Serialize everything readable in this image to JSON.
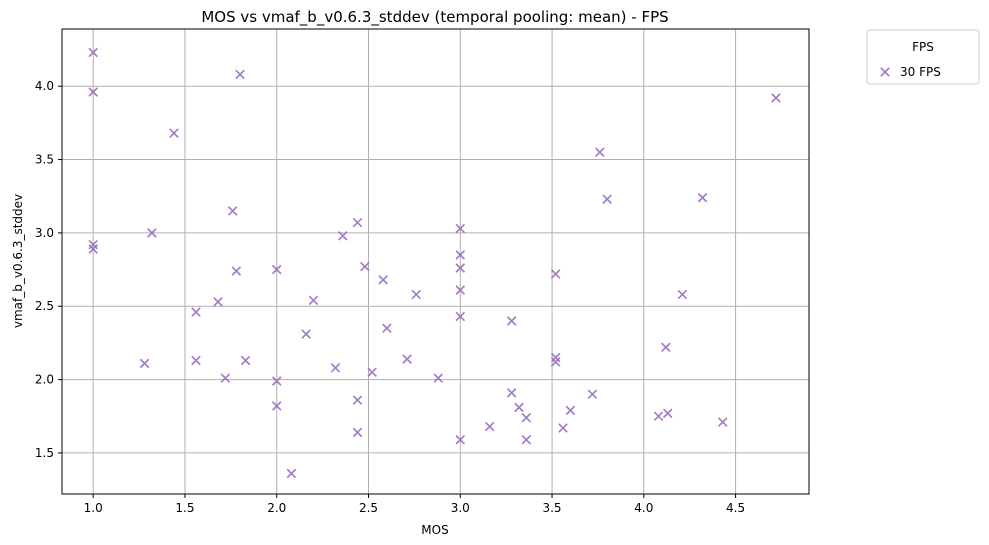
{
  "chart_data": {
    "type": "scatter",
    "title": "MOS vs vmaf_b_v0.6.3_stddev (temporal pooling: mean) - FPS",
    "xlabel": "MOS",
    "ylabel": "vmaf_b_v0.6.3_stddev",
    "xlim": [
      0.83,
      4.9
    ],
    "ylim": [
      1.22,
      4.39
    ],
    "xticks": [
      "1.0",
      "1.5",
      "2.0",
      "2.5",
      "3.0",
      "3.5",
      "4.0",
      "4.5"
    ],
    "yticks": [
      "1.5",
      "2.0",
      "2.5",
      "3.0",
      "3.5",
      "4.0"
    ],
    "grid": true,
    "legend": {
      "title": "FPS",
      "placement": "outside-top-right"
    },
    "series": [
      {
        "name": "30 FPS",
        "color": "#9467bd",
        "marker": "x",
        "points": [
          [
            1.0,
            4.23
          ],
          [
            1.0,
            3.96
          ],
          [
            1.0,
            2.92
          ],
          [
            1.0,
            2.89
          ],
          [
            1.28,
            2.11
          ],
          [
            1.32,
            3.0
          ],
          [
            1.44,
            3.68
          ],
          [
            1.56,
            2.46
          ],
          [
            1.56,
            2.13
          ],
          [
            1.68,
            2.53
          ],
          [
            1.72,
            2.01
          ],
          [
            1.76,
            3.15
          ],
          [
            1.78,
            2.74
          ],
          [
            1.8,
            4.08
          ],
          [
            1.83,
            2.13
          ],
          [
            2.0,
            2.75
          ],
          [
            2.0,
            1.99
          ],
          [
            2.0,
            1.82
          ],
          [
            2.08,
            1.36
          ],
          [
            2.16,
            2.31
          ],
          [
            2.2,
            2.54
          ],
          [
            2.32,
            2.08
          ],
          [
            2.36,
            2.98
          ],
          [
            2.44,
            3.07
          ],
          [
            2.44,
            1.86
          ],
          [
            2.44,
            1.64
          ],
          [
            2.48,
            2.77
          ],
          [
            2.52,
            2.05
          ],
          [
            2.58,
            2.68
          ],
          [
            2.6,
            2.35
          ],
          [
            2.71,
            2.14
          ],
          [
            2.76,
            2.58
          ],
          [
            2.88,
            2.01
          ],
          [
            3.0,
            3.03
          ],
          [
            3.0,
            2.85
          ],
          [
            3.0,
            2.76
          ],
          [
            3.0,
            2.61
          ],
          [
            3.0,
            2.43
          ],
          [
            3.0,
            1.59
          ],
          [
            3.16,
            1.68
          ],
          [
            3.28,
            2.4
          ],
          [
            3.28,
            1.91
          ],
          [
            3.32,
            1.81
          ],
          [
            3.36,
            1.74
          ],
          [
            3.36,
            1.59
          ],
          [
            3.52,
            2.72
          ],
          [
            3.52,
            2.15
          ],
          [
            3.52,
            2.12
          ],
          [
            3.56,
            1.67
          ],
          [
            3.6,
            1.79
          ],
          [
            3.72,
            1.9
          ],
          [
            3.76,
            3.55
          ],
          [
            3.8,
            3.23
          ],
          [
            4.08,
            1.75
          ],
          [
            4.12,
            2.22
          ],
          [
            4.13,
            1.77
          ],
          [
            4.21,
            2.58
          ],
          [
            4.32,
            3.24
          ],
          [
            4.43,
            1.71
          ],
          [
            4.72,
            3.92
          ]
        ]
      }
    ]
  }
}
